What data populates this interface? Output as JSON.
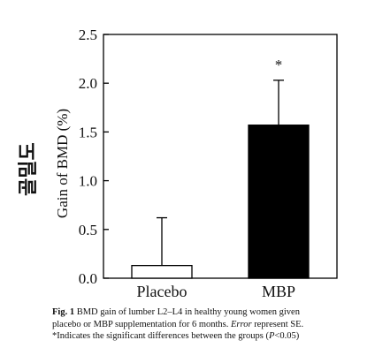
{
  "side_label": "골밀도",
  "caption": {
    "lead": "Fig. 1",
    "line1": " BMD gain of lumber L2–L4 in healthy young women given",
    "line2a": "placebo or MBP supplementation for 6 months. ",
    "line2_em": "Error",
    "line2b": " represent SE.",
    "line3a": "*Indicates the significant differences between the groups (",
    "line3_em": "P",
    "line3b": "<0.05)"
  },
  "chart_data": {
    "type": "bar",
    "categories": [
      "Placebo",
      "MBP"
    ],
    "values": [
      0.13,
      1.57
    ],
    "errors": [
      0.49,
      0.46
    ],
    "bar_colors": [
      "#ffffff",
      "#000000"
    ],
    "annotations": [
      "",
      "*"
    ],
    "ylabel": "Gain of BMD (%)",
    "xlabel": "",
    "ylim": [
      0,
      2.5
    ],
    "yticks": [
      "0.0",
      "0.5",
      "1.0",
      "1.5",
      "2.0",
      "2.5"
    ],
    "grid": false
  }
}
